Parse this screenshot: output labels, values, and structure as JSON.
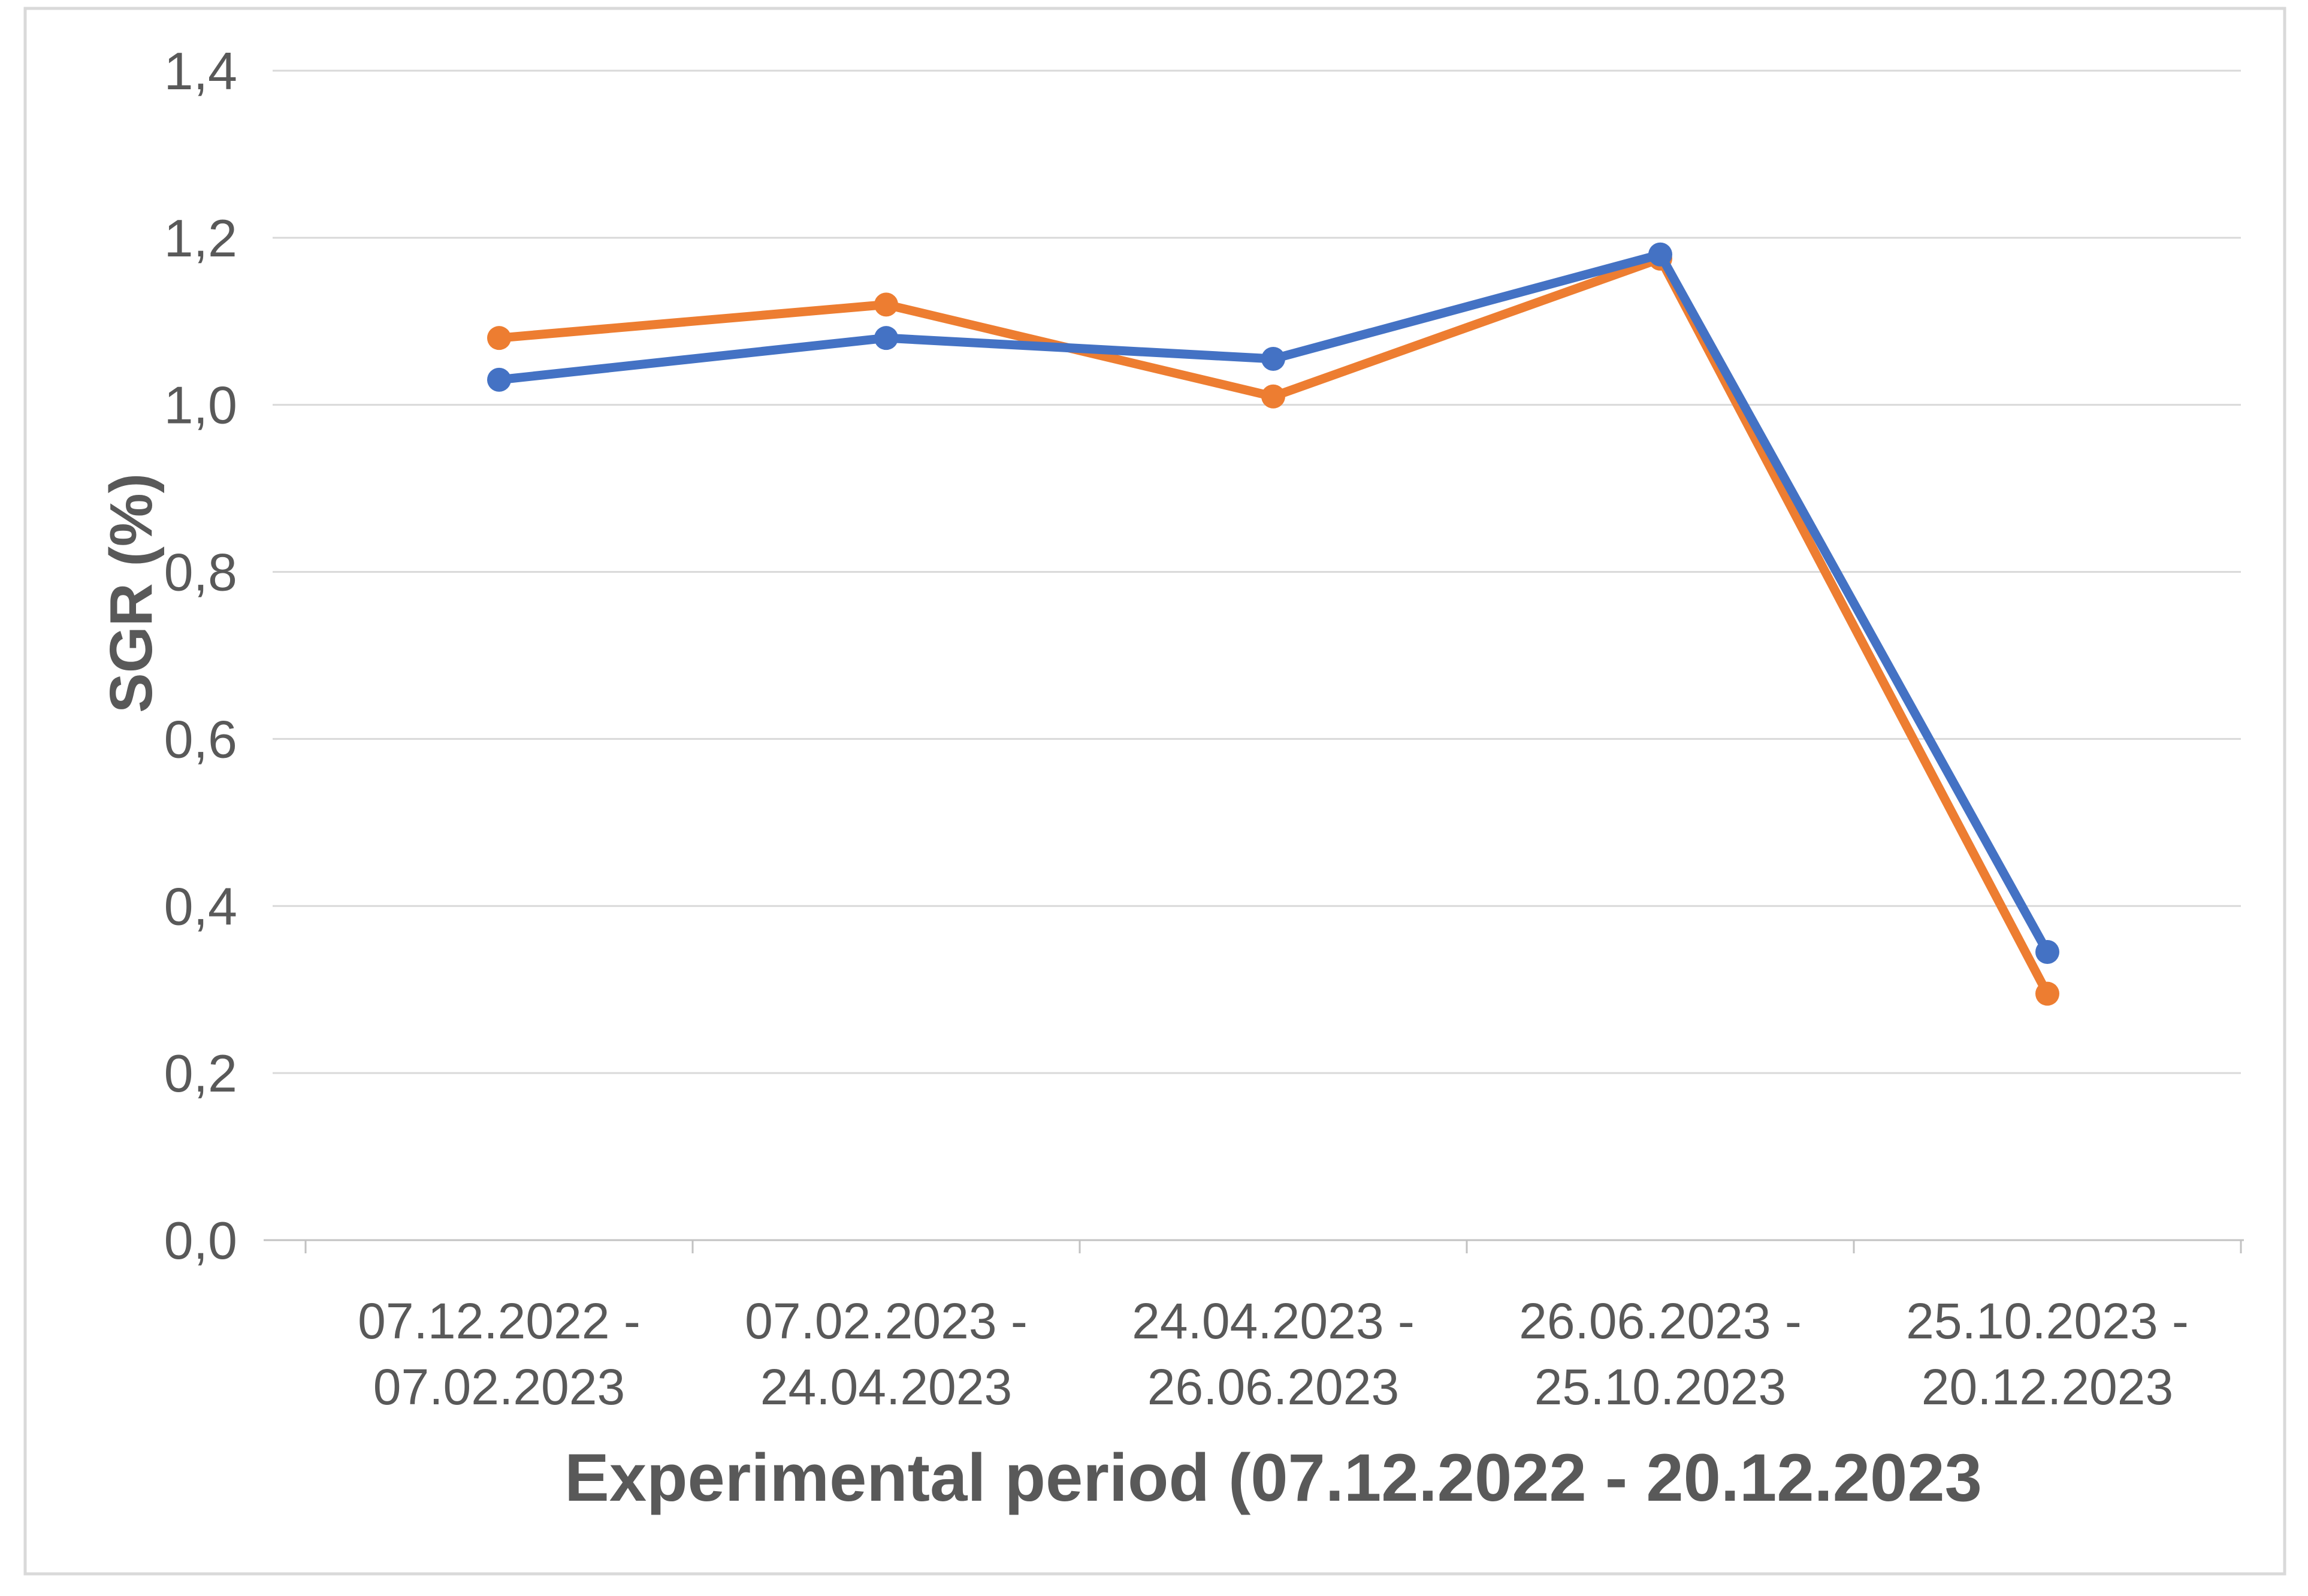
{
  "chart_data": {
    "type": "line",
    "title": "",
    "xlabel": "Experimental period (07.12.2022 - 20.12.2023",
    "ylabel": "SGR (%)",
    "categories": [
      {
        "line1": "07.12.2022 -",
        "line2": "07.02.2023"
      },
      {
        "line1": "07.02.2023 -",
        "line2": "24.04.2023"
      },
      {
        "line1": "24.04.2023 -",
        "line2": "26.06.2023"
      },
      {
        "line1": "26.06.2023 -",
        "line2": "25.10.2023"
      },
      {
        "line1": "25.10.2023 -",
        "line2": "20.12.2023"
      }
    ],
    "series": [
      {
        "id": "orange-series",
        "color": "#ED7D31",
        "values": [
          1.08,
          1.12,
          1.01,
          1.175,
          0.295
        ]
      },
      {
        "id": "blue-series",
        "color": "#4472C4",
        "values": [
          1.03,
          1.08,
          1.055,
          1.18,
          0.345
        ]
      }
    ],
    "ylim": [
      0,
      1.4
    ],
    "ytick_step": 0.2,
    "ytick_labels": [
      "0,0",
      "0,2",
      "0,4",
      "0,6",
      "0,8",
      "1,0",
      "1,2",
      "1,4"
    ],
    "decimal_separator": ",",
    "grid": true,
    "legend": false,
    "colors": {
      "gridline": "#D9D9D9",
      "axis": "#C2C2C2",
      "text": "#595959",
      "frame_border": "#D9D9D9",
      "background": "#FFFFFF"
    }
  }
}
